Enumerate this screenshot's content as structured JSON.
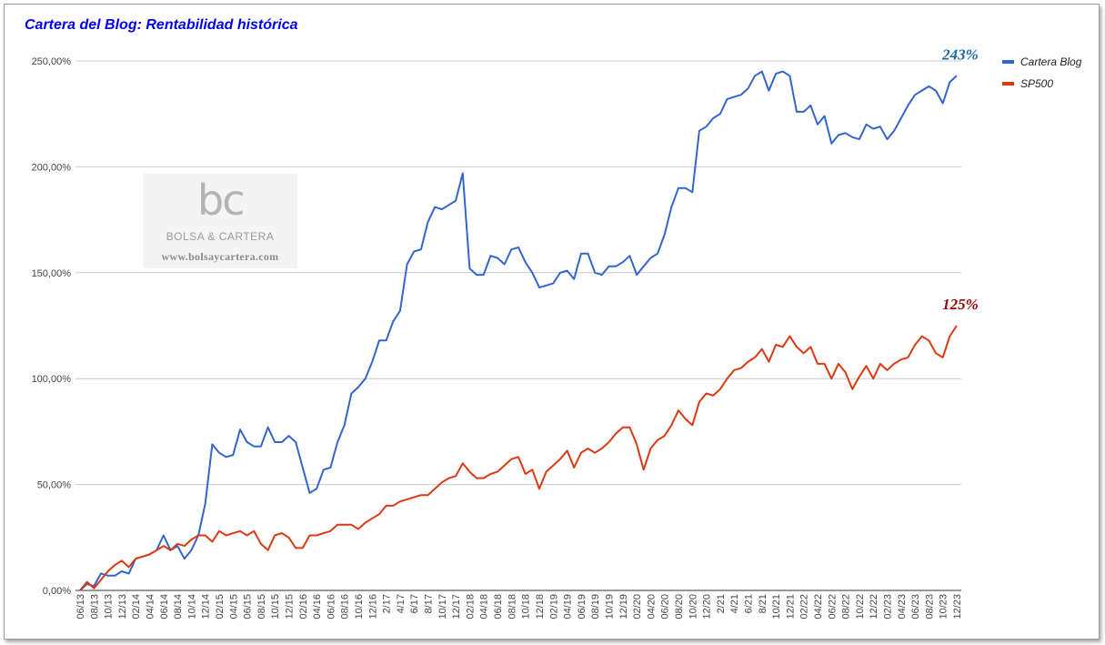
{
  "colors": {
    "blog": "#3366cc",
    "sp500": "#dc3912",
    "title": "#0000ee",
    "ann_blog": "#1a6aa8",
    "ann_sp500": "#990000",
    "grid": "#cccccc"
  },
  "watermark": {
    "logo": "bc",
    "name": "BOLSA & CARTERA",
    "url": "www.bolsaycartera.com"
  },
  "chart_data": {
    "type": "line",
    "title": "Cartera del Blog: Rentabilidad histórica",
    "xlabel": "",
    "ylabel": "",
    "ylim": [
      0,
      250
    ],
    "yticks": [
      0,
      50,
      100,
      150,
      200,
      250
    ],
    "ytick_labels": [
      "0,00%",
      "50,00%",
      "100,00%",
      "150,00%",
      "200,00%",
      "250,00%"
    ],
    "grid": true,
    "legend_position": "right",
    "x": [
      "06/13",
      "07/13",
      "08/13",
      "09/13",
      "10/13",
      "11/13",
      "12/13",
      "01/14",
      "02/14",
      "03/14",
      "04/14",
      "05/14",
      "06/14",
      "07/14",
      "08/14",
      "09/14",
      "10/14",
      "11/14",
      "12/14",
      "01/15",
      "02/15",
      "03/15",
      "04/15",
      "05/15",
      "06/15",
      "07/15",
      "08/15",
      "09/15",
      "10/15",
      "11/15",
      "12/15",
      "01/16",
      "02/16",
      "03/16",
      "04/16",
      "05/16",
      "06/16",
      "07/16",
      "08/16",
      "09/16",
      "10/16",
      "11/16",
      "12/16",
      "1/17",
      "2/17",
      "3/17",
      "4/17",
      "5/17",
      "6/17",
      "7/17",
      "8/17",
      "9/17",
      "10/17",
      "11/17",
      "12/17",
      "01/18",
      "02/18",
      "03/18",
      "04/18",
      "05/18",
      "06/18",
      "07/18",
      "08/18",
      "09/18",
      "10/18",
      "11/18",
      "12/18",
      "01/19",
      "02/19",
      "03/19",
      "04/19",
      "05/19",
      "06/19",
      "07/19",
      "08/19",
      "09/19",
      "10/19",
      "11/19",
      "12/19",
      "01/20",
      "02/20",
      "03/20",
      "04/20",
      "05/20",
      "06/20",
      "07/20",
      "08/20",
      "09/20",
      "10/20",
      "11/20",
      "12/20",
      "1/21",
      "2/21",
      "3/21",
      "4/21",
      "5/21",
      "6/21",
      "7/21",
      "8/21",
      "9/21",
      "10/21",
      "11/21",
      "12/21",
      "01/22",
      "02/22",
      "03/22",
      "04/22",
      "05/22",
      "06/22",
      "07/22",
      "08/22",
      "09/22",
      "10/22",
      "11/22",
      "12/22",
      "01/23",
      "02/23",
      "03/23",
      "04/23",
      "05/23",
      "06/23",
      "07/23",
      "08/23",
      "09/23",
      "10/23",
      "11/23",
      "12/23"
    ],
    "x_tick_labels": [
      "06/13",
      "08/13",
      "10/13",
      "12/13",
      "02/14",
      "04/14",
      "06/14",
      "08/14",
      "10/14",
      "12/14",
      "02/15",
      "04/15",
      "06/15",
      "08/15",
      "10/15",
      "12/15",
      "02/16",
      "04/16",
      "06/16",
      "08/16",
      "10/16",
      "12/16",
      "2/17",
      "4/17",
      "6/17",
      "8/17",
      "10/17",
      "12/17",
      "02/18",
      "04/18",
      "06/18",
      "08/18",
      "10/18",
      "12/18",
      "02/19",
      "04/19",
      "06/19",
      "08/19",
      "10/19",
      "12/19",
      "02/20",
      "04/20",
      "06/20",
      "08/20",
      "10/20",
      "12/20",
      "2/21",
      "4/21",
      "6/21",
      "8/21",
      "10/21",
      "12/21",
      "02/22",
      "04/22",
      "06/22",
      "08/22",
      "10/22",
      "12/22",
      "02/23",
      "04/23",
      "06/23",
      "08/23",
      "10/23",
      "12/23"
    ],
    "series": [
      {
        "name": "Cartera Blog",
        "values": [
          0,
          3,
          2,
          8,
          7,
          7,
          9,
          8,
          15,
          16,
          17,
          19,
          26,
          19,
          21,
          15,
          19,
          26,
          41,
          69,
          65,
          63,
          64,
          76,
          70,
          68,
          68,
          77,
          70,
          70,
          73,
          70,
          58,
          46,
          48,
          57,
          58,
          70,
          78,
          93,
          96,
          100,
          108,
          118,
          118,
          127,
          132,
          154,
          160,
          161,
          174,
          181,
          180,
          182,
          184,
          197,
          152,
          149,
          149,
          158,
          157,
          154,
          161,
          162,
          155,
          150,
          143,
          144,
          145,
          150,
          151,
          147,
          159,
          159,
          150,
          149,
          153,
          153,
          155,
          158,
          149,
          153,
          157,
          159,
          168,
          181,
          190,
          190,
          188,
          217,
          219,
          223,
          225,
          232,
          233,
          234,
          237,
          243,
          245,
          236,
          244,
          245,
          243,
          226,
          226,
          229,
          220,
          224,
          211,
          215,
          216,
          214,
          213,
          220,
          218,
          219,
          213,
          217,
          223,
          229,
          234,
          236,
          238,
          236,
          230,
          240,
          243
        ]
      },
      {
        "name": "SP500",
        "values": [
          0,
          4,
          1,
          5,
          9,
          12,
          14,
          11,
          15,
          16,
          17,
          19,
          21,
          19,
          22,
          21,
          24,
          26,
          26,
          23,
          28,
          26,
          27,
          28,
          26,
          28,
          22,
          19,
          26,
          27,
          25,
          20,
          20,
          26,
          26,
          27,
          28,
          31,
          31,
          31,
          29,
          32,
          34,
          36,
          40,
          40,
          42,
          43,
          44,
          45,
          45,
          48,
          51,
          53,
          54,
          60,
          56,
          53,
          53,
          55,
          56,
          59,
          62,
          63,
          55,
          57,
          48,
          56,
          59,
          62,
          66,
          58,
          65,
          67,
          65,
          67,
          70,
          74,
          77,
          77,
          69,
          57,
          67,
          71,
          73,
          78,
          85,
          81,
          78,
          89,
          93,
          92,
          95,
          100,
          104,
          105,
          108,
          110,
          114,
          108,
          116,
          115,
          120,
          115,
          112,
          115,
          107,
          107,
          100,
          107,
          103,
          95,
          101,
          106,
          100,
          107,
          104,
          107,
          109,
          110,
          116,
          120,
          118,
          112,
          110,
          120,
          125
        ]
      }
    ],
    "annotations": [
      {
        "series": "Cartera Blog",
        "text": "243%"
      },
      {
        "series": "SP500",
        "text": "125%"
      }
    ]
  }
}
